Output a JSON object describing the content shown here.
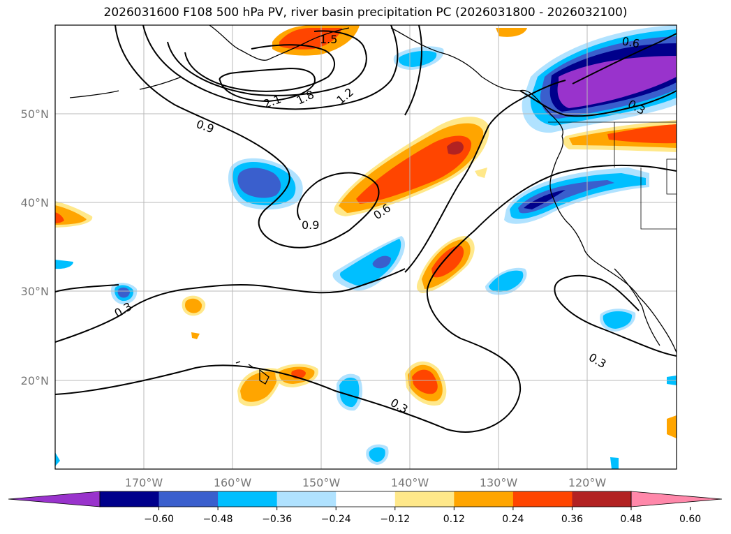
{
  "title": "2026031600 F108 500 hPa PV, river basin precipitation PC (2026031800 - 2026032100)",
  "lat_labels": [
    "50°N",
    "40°N",
    "30°N",
    "20°N"
  ],
  "lon_labels": [
    "170°W",
    "160°W",
    "150°W",
    "140°W",
    "130°W",
    "120°W"
  ],
  "contour_labels": [
    "1.5",
    "2.1",
    "1.8",
    "1.2",
    "0.9",
    "0.9",
    "0.6",
    "0.3",
    "0.3",
    "0.3",
    "0.6",
    "0.3"
  ],
  "colorbar": {
    "tick_labels": [
      "−0.60",
      "−0.48",
      "−0.36",
      "−0.24",
      "−0.12",
      "0.12",
      "0.24",
      "0.36",
      "0.48",
      "0.60"
    ],
    "colors": [
      "#9933cc",
      "#00008b",
      "#3a5fcd",
      "#00bfff",
      "#b0e2ff",
      "#ffffff",
      "#ffe88a",
      "#ffa500",
      "#ff4500",
      "#b22222",
      "#ff88aa"
    ]
  },
  "palette": {
    "purple": "#9933cc",
    "navy": "#00008b",
    "blue": "#3a5fcd",
    "cyan": "#00bfff",
    "lightblue": "#b0e2ff",
    "yellow": "#ffe88a",
    "orange": "#ffa500",
    "redorange": "#ff4500",
    "darkred": "#b22222"
  }
}
